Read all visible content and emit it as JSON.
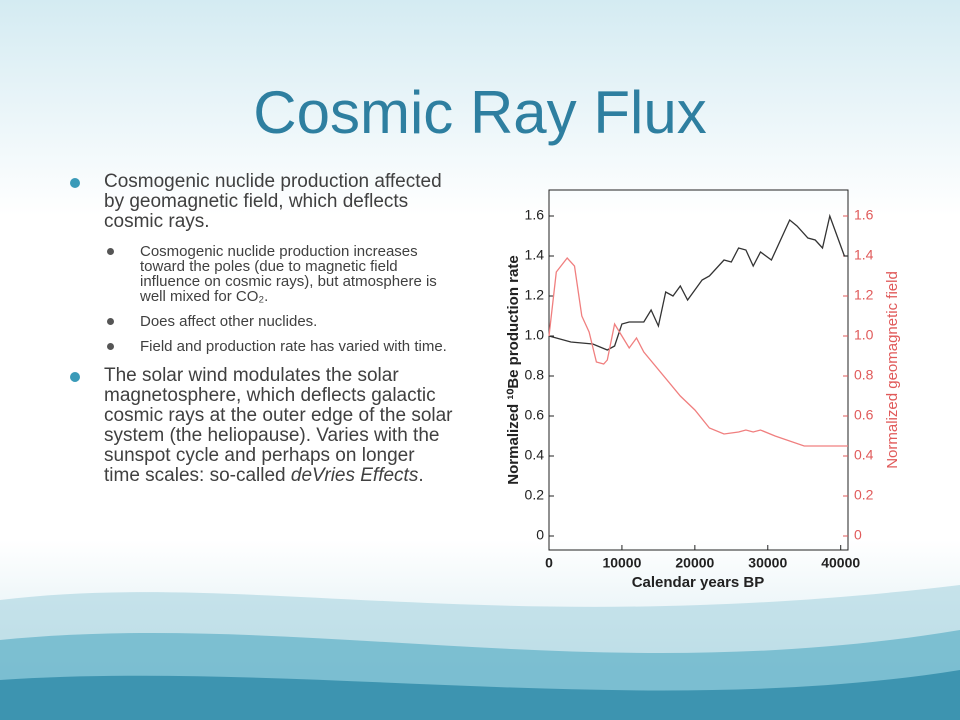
{
  "slide": {
    "title": "Cosmic Ray Flux",
    "bullets": [
      {
        "text": "Cosmogenic nuclide production affected by geomagnetic field, which deflects cosmic rays.",
        "sub": [
          "Cosmogenic nuclide production increases toward the poles (due to magnetic field influence on cosmic rays), but atmosphere is well mixed for CO₂.",
          "Does affect other nuclides.",
          "Field and production rate has varied with time."
        ]
      },
      {
        "text": [
          "The solar wind modulates the solar magnetosphere, which deflects galactic cosmic rays at the outer edge of the solar system (the heliopause). Varies with the sunspot cycle and perhaps on longer time scales: so-called ",
          "deVries Effects",
          "."
        ]
      }
    ]
  },
  "chart_data": {
    "type": "line",
    "x_label": "Calendar years BP",
    "y_label": "Normalized ¹⁰Be production rate",
    "y2_label": "Normalized geomagnetic field",
    "xlim": [
      0,
      41000
    ],
    "xticks": [
      0,
      10000,
      20000,
      30000,
      40000
    ],
    "ylim": [
      -0.07,
      1.73
    ],
    "yticks": [
      0,
      0.2,
      0.4,
      0.6,
      0.8,
      {
        "value": 1,
        "label": "1.0"
      },
      1.2,
      1.4,
      1.6
    ],
    "y2lim": [
      -0.07,
      1.73
    ],
    "y2ticks": [
      0,
      0.2,
      0.4,
      0.6,
      0.8,
      {
        "value": 1,
        "label": "1.0"
      },
      1.2,
      1.4,
      1.6
    ],
    "series": [
      {
        "name": "Normalized ¹⁰Be production rate",
        "color": "#333333",
        "x": [
          0,
          3000,
          6000,
          8000,
          9000,
          10000,
          11000,
          13000,
          14000,
          15000,
          16000,
          17000,
          18000,
          19000,
          21000,
          22000,
          24000,
          25000,
          26000,
          27000,
          28000,
          29000,
          30500,
          33000,
          34000,
          35500,
          36500,
          37500,
          38500,
          39500,
          40500,
          41000
        ],
        "values": [
          1.0,
          0.97,
          0.96,
          0.93,
          0.95,
          1.06,
          1.07,
          1.07,
          1.13,
          1.05,
          1.22,
          1.2,
          1.25,
          1.18,
          1.28,
          1.3,
          1.38,
          1.37,
          1.44,
          1.43,
          1.35,
          1.42,
          1.38,
          1.58,
          1.55,
          1.49,
          1.48,
          1.44,
          1.6,
          1.5,
          1.4,
          1.4
        ]
      },
      {
        "name": "Normalized geomagnetic field",
        "color": "#f07f7f",
        "axis": "y2",
        "x": [
          0,
          1000,
          2500,
          3500,
          4500,
          5500,
          6500,
          7500,
          8000,
          9000,
          10000,
          11000,
          12000,
          13000,
          18000,
          20000,
          22000,
          24000,
          26000,
          27000,
          28000,
          29000,
          31000,
          35000,
          41000
        ],
        "values": [
          1.0,
          1.32,
          1.39,
          1.35,
          1.1,
          1.02,
          0.87,
          0.86,
          0.88,
          1.06,
          1.0,
          0.94,
          0.99,
          0.92,
          0.7,
          0.63,
          0.54,
          0.51,
          0.52,
          0.53,
          0.52,
          0.53,
          0.5,
          0.45,
          0.45
        ]
      }
    ]
  }
}
